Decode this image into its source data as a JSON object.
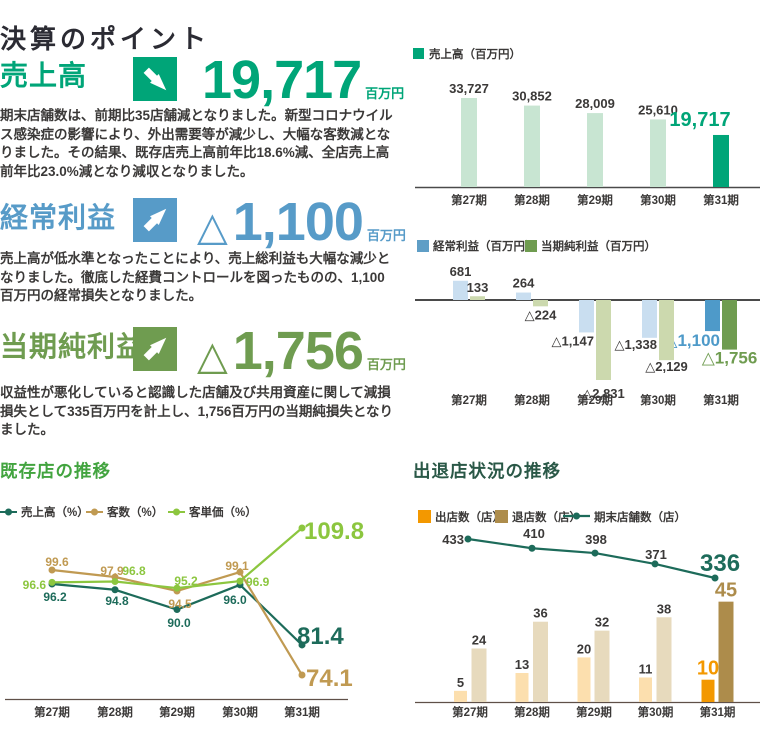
{
  "page": {
    "title": "決算のポイント"
  },
  "metrics": [
    {
      "label": "売上高",
      "direction": "down",
      "prefix": "",
      "value": "19,717",
      "unit": "百万円",
      "color": "#00a578",
      "description": "期末店舗数は、前期比35店舗減となりました。新型コロナウイルス感染症の影響により、外出需要等が減少し、大幅な客数減となりました。その結果、既存店売上高前年比18.6%減、全店売上高前年比23.0%減となり減収となりました。"
    },
    {
      "label": "経常利益",
      "direction": "up",
      "prefix": "△",
      "value": "1,100",
      "unit": "百万円",
      "color": "#579bc8",
      "description": "売上高が低水準となったことにより、売上総利益も大幅な減少となりました。徹底した経費コントロールを図ったものの、1,100百万円の経常損失となりました。"
    },
    {
      "label": "当期純利益",
      "direction": "up",
      "prefix": "△",
      "value": "1,756",
      "unit": "百万円",
      "color": "#6f9c50",
      "description": "収益性が悪化していると認識した店舗及び共用資産に関して減損損失として335百万円を計上し、1,756百万円の当期純損失となりました。"
    }
  ],
  "chart_data": [
    {
      "id": "net_sales",
      "type": "bar",
      "legend": [
        {
          "label": "売上高（百万円）",
          "color": "#00a578"
        }
      ],
      "categories": [
        "第27期",
        "第28期",
        "第29期",
        "第30期",
        "第31期"
      ],
      "values": [
        33727,
        30852,
        28009,
        25610,
        19717
      ],
      "value_labels": [
        "33,727",
        "30,852",
        "28,009",
        "25,610",
        "19,717"
      ],
      "bar_color": "#c8e5d2",
      "highlight_color": "#00a578",
      "highlight_index": 4,
      "ylim": [
        0,
        35000
      ]
    },
    {
      "id": "profit",
      "type": "grouped_bar",
      "legend": [
        {
          "label": "経常利益（百万円）",
          "color": "#5f9ec6"
        },
        {
          "label": "当期純利益（百万円）",
          "color": "#6f9c50"
        }
      ],
      "categories": [
        "第27期",
        "第28期",
        "第29期",
        "第30期",
        "第31期"
      ],
      "series": [
        {
          "name": "経常利益（百万円）",
          "values": [
            681,
            264,
            -1147,
            -1338,
            -1100
          ],
          "value_labels": [
            "681",
            "264",
            "△1,147",
            "△1,338",
            "△1,100"
          ],
          "bar_color": "#c9def0",
          "highlight_color": "#4e9ac9"
        },
        {
          "name": "当期純利益（百万円）",
          "values": [
            133,
            -224,
            -2831,
            -2129,
            -1756
          ],
          "value_labels": [
            "133",
            "△224",
            "△2,831",
            "△2,129",
            "△1,756"
          ],
          "bar_color": "#ccd9ae",
          "highlight_color": "#6f9c50"
        }
      ],
      "highlight_index": 4,
      "ylim": [
        -3000,
        900
      ]
    },
    {
      "id": "same_store_trend",
      "type": "line",
      "title": "既存店の推移",
      "categories": [
        "第27期",
        "第28期",
        "第29期",
        "第30期",
        "第31期"
      ],
      "series": [
        {
          "name": "売上高（%）",
          "color": "#1d6b5a",
          "values": [
            96.2,
            94.8,
            90.0,
            96.0,
            81.4
          ],
          "value_labels": [
            "96.2",
            "94.8",
            "90.0",
            "96.0",
            "81.4"
          ]
        },
        {
          "name": "客数（%）",
          "color": "#c09a52",
          "values": [
            99.6,
            97.9,
            94.5,
            99.1,
            74.1
          ],
          "value_labels": [
            "99.6",
            "97.9",
            "94.5",
            "99.1",
            "74.1"
          ]
        },
        {
          "name": "客単価（%）",
          "color": "#8cc63f",
          "values": [
            96.6,
            96.8,
            95.2,
            96.9,
            109.8
          ],
          "value_labels": [
            "96.6",
            "96.8",
            "95.2",
            "96.9",
            "109.8"
          ]
        }
      ],
      "ylim": [
        70,
        112
      ]
    },
    {
      "id": "store_openings",
      "type": "bar_line",
      "title": "出退店状況の推移",
      "categories": [
        "第27期",
        "第28期",
        "第29期",
        "第30期",
        "第31期"
      ],
      "bar_series": [
        {
          "name": "出店数（店）",
          "color": "#f39800",
          "pale_color": "#fcdfae",
          "values": [
            5,
            13,
            20,
            11,
            10
          ],
          "value_labels": [
            "5",
            "13",
            "20",
            "11",
            "10"
          ]
        },
        {
          "name": "退店数（店）",
          "color": "#ad8c4b",
          "pale_color": "#e7dabd",
          "values": [
            24,
            36,
            32,
            38,
            45
          ],
          "value_labels": [
            "24",
            "36",
            "32",
            "38",
            "45"
          ]
        }
      ],
      "line_series": {
        "name": "期末店舗数（店）",
        "color": "#1d6b5a",
        "values": [
          433,
          410,
          398,
          371,
          336
        ],
        "value_labels": [
          "433",
          "410",
          "398",
          "371",
          "336"
        ]
      },
      "highlight_index": 4
    }
  ]
}
